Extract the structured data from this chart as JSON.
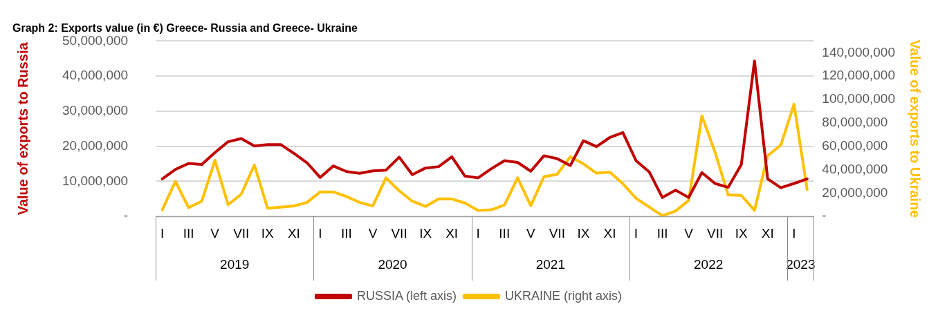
{
  "chart_data": {
    "type": "line",
    "title": "Graph 2: Exports value (in €) Greece- Russia and Greece- Ukraine",
    "ylabel": "Value of exports to Russia",
    "y2label": "Value of exports to Ukraine",
    "categories": [
      "I",
      null,
      "III",
      null,
      "V",
      null,
      "VII",
      null,
      "IX",
      null,
      "XI",
      null,
      "I",
      null,
      "III",
      null,
      "V",
      null,
      "VII",
      null,
      "IX",
      null,
      "XI",
      null,
      "I",
      null,
      "III",
      null,
      "V",
      null,
      "VII",
      null,
      "IX",
      null,
      "XI",
      null,
      "I",
      null,
      "III",
      null,
      "V",
      null,
      "VII",
      null,
      "IX",
      null,
      "XI",
      null,
      "I",
      null
    ],
    "annotations": [
      "2019",
      "2020",
      "2021",
      "2022",
      "2023"
    ],
    "series": [
      {
        "name": "RUSSIA (left axis)",
        "color": "#c00000",
        "values": [
          10700000,
          13400000,
          15100000,
          14800000,
          18200000,
          21300000,
          22200000,
          20100000,
          20500000,
          20500000,
          18000000,
          15300000,
          11100000,
          14400000,
          12800000,
          12300000,
          13000000,
          13200000,
          16900000,
          11900000,
          13800000,
          14200000,
          17000000,
          11500000,
          11000000,
          13600000,
          15900000,
          15400000,
          12900000,
          17300000,
          16500000,
          14500000,
          21600000,
          19900000,
          22500000,
          23900000,
          15900000,
          12700000,
          5400000,
          7500000,
          5400000,
          12500000,
          9400000,
          8300000,
          14800000,
          44300000,
          10700000,
          8200000,
          9400000,
          10700000
        ]
      },
      {
        "name": "UKRAINE (right axis)",
        "color": "#ffc000",
        "axis": "y2",
        "values": [
          5700000,
          30000000,
          7500000,
          13000000,
          48000000,
          10000000,
          19000000,
          44000000,
          7000000,
          8000000,
          9000000,
          12000000,
          21000000,
          21000000,
          17000000,
          12000000,
          9000000,
          33000000,
          22000000,
          13000000,
          8600000,
          15000000,
          15000000,
          11500000,
          5200000,
          5700000,
          9800000,
          33000000,
          9200000,
          34000000,
          36000000,
          51000000,
          45000000,
          37000000,
          38000000,
          28000000,
          15500000,
          8000000,
          600000,
          4600000,
          13800000,
          86000000,
          55000000,
          18400000,
          18000000,
          5200000,
          52000000,
          61000000,
          96000000,
          23000000
        ]
      }
    ],
    "ylim": [
      0,
      50000000
    ],
    "yticks": [
      {
        "value": 0,
        "label": "-"
      },
      {
        "value": 10000000,
        "label": "10,000,000"
      },
      {
        "value": 20000000,
        "label": "20,000,000"
      },
      {
        "value": 30000000,
        "label": "30,000,000"
      },
      {
        "value": 40000000,
        "label": "40,000,000"
      },
      {
        "value": 50000000,
        "label": "50,000,000"
      }
    ],
    "y2lim": [
      0,
      150000000
    ],
    "y2ticks": [
      {
        "value": 0,
        "label": "-"
      },
      {
        "value": 20000000,
        "label": "20,000,000"
      },
      {
        "value": 40000000,
        "label": "40,000,000"
      },
      {
        "value": 60000000,
        "label": "60,000,000"
      },
      {
        "value": 80000000,
        "label": "80,000,000"
      },
      {
        "value": 100000000,
        "label": "100,000,000"
      },
      {
        "value": 120000000,
        "label": "120,000,000"
      },
      {
        "value": 140000000,
        "label": "140,000,000"
      }
    ],
    "grid": "y",
    "legend": "bottom",
    "marker": "none",
    "line_style": "solid"
  }
}
